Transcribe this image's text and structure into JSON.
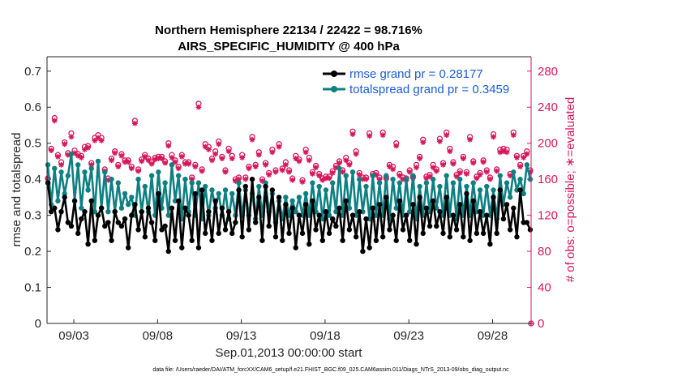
{
  "chart_data": {
    "type": "line",
    "title": "Northern Hemisphere 22134 / 22422 = 98.716%",
    "subtitle": "AIRS_SPECIFIC_HUMIDITY @ 400 hPa",
    "xlabel": "Sep.01,2013 00:00:00 start",
    "ylabel": "rmse and totalspread",
    "y2label": "# of obs: o=possible; ∗=evaluated",
    "footer": "data file: /Users/raeder/DAI/ATM_forcXX/CAM6_setup/f.e21.FHIST_BGC.f09_025.CAM6assim.011/Diags_NTrS_2013-09/obs_diag_output.nc",
    "xlim": [
      1.4,
      30.3
    ],
    "ylim": [
      0,
      0.74
    ],
    "y2lim": [
      0,
      296
    ],
    "x_ticks": [
      {
        "x": 3,
        "label": "09/03"
      },
      {
        "x": 8,
        "label": "09/08"
      },
      {
        "x": 13,
        "label": "09/13"
      },
      {
        "x": 18,
        "label": "09/18"
      },
      {
        "x": 23,
        "label": "09/23"
      },
      {
        "x": 28,
        "label": "09/28"
      }
    ],
    "y_ticks": [
      "0",
      "0.1",
      "0.2",
      "0.3",
      "0.4",
      "0.5",
      "0.6",
      "0.7"
    ],
    "y2_ticks": [
      "0",
      "40",
      "80",
      "120",
      "160",
      "200",
      "240",
      "280"
    ],
    "grid": false,
    "legend_position": "top-right",
    "colors": {
      "rmse": "#000000",
      "totalspread": "#0e7f82",
      "obs": "#d6175a",
      "legend_text": "#1a5cd6"
    },
    "series": [
      {
        "name": "rmse grand pr = 0.28177",
        "values": [
          0.26,
          0.39,
          0.31,
          0.32,
          0.26,
          0.31,
          0.35,
          0.28,
          0.27,
          0.34,
          0.25,
          0.29,
          0.31,
          0.22,
          0.34,
          0.23,
          0.3,
          0.32,
          0.27,
          0.28,
          0.23,
          0.31,
          0.28,
          0.27,
          0.29,
          0.21,
          0.3,
          0.33,
          0.26,
          0.31,
          0.24,
          0.32,
          0.28,
          0.23,
          0.36,
          0.26,
          0.27,
          0.2,
          0.32,
          0.23,
          0.34,
          0.21,
          0.32,
          0.3,
          0.23,
          0.36,
          0.21,
          0.37,
          0.25,
          0.31,
          0.23,
          0.34,
          0.25,
          0.32,
          0.26,
          0.31,
          0.25,
          0.28,
          0.37,
          0.24,
          0.38,
          0.26,
          0.4,
          0.28,
          0.35,
          0.23,
          0.38,
          0.27,
          0.37,
          0.24,
          0.35,
          0.23,
          0.33,
          0.25,
          0.32,
          0.21,
          0.3,
          0.25,
          0.33,
          0.22,
          0.34,
          0.26,
          0.3,
          0.23,
          0.31,
          0.25,
          0.29,
          0.27,
          0.32,
          0.23,
          0.34,
          0.26,
          0.3,
          0.24,
          0.31,
          0.2,
          0.29,
          0.21,
          0.32,
          0.23,
          0.33,
          0.24,
          0.35,
          0.26,
          0.3,
          0.23,
          0.34,
          0.26,
          0.3,
          0.23,
          0.33,
          0.22,
          0.35,
          0.25,
          0.32,
          0.27,
          0.34,
          0.27,
          0.31,
          0.25,
          0.35,
          0.24,
          0.3,
          0.26,
          0.33,
          0.24,
          0.36,
          0.23,
          0.34,
          0.25,
          0.31,
          0.25,
          0.3,
          0.22,
          0.35,
          0.25,
          0.37,
          0.29,
          0.33,
          0.26,
          0.32,
          0.24,
          0.37,
          0.28,
          0.28,
          0.26,
          0.27,
          0.24,
          0.28,
          0.3,
          0.29
        ]
      },
      {
        "name": "totalspread grand pr = 0.3459",
        "values": [
          0.37,
          0.44,
          0.33,
          0.43,
          0.34,
          0.42,
          0.36,
          0.41,
          0.47,
          0.34,
          0.44,
          0.32,
          0.42,
          0.37,
          0.43,
          0.31,
          0.45,
          0.32,
          0.42,
          0.31,
          0.4,
          0.31,
          0.39,
          0.32,
          0.36,
          0.33,
          0.35,
          0.3,
          0.4,
          0.31,
          0.38,
          0.31,
          0.41,
          0.3,
          0.42,
          0.32,
          0.39,
          0.3,
          0.44,
          0.34,
          0.41,
          0.29,
          0.4,
          0.31,
          0.39,
          0.3,
          0.39,
          0.29,
          0.38,
          0.3,
          0.37,
          0.32,
          0.36,
          0.3,
          0.37,
          0.29,
          0.36,
          0.3,
          0.39,
          0.3,
          0.37,
          0.3,
          0.36,
          0.29,
          0.38,
          0.3,
          0.39,
          0.31,
          0.36,
          0.28,
          0.34,
          0.29,
          0.35,
          0.3,
          0.34,
          0.31,
          0.35,
          0.3,
          0.36,
          0.3,
          0.39,
          0.31,
          0.38,
          0.29,
          0.37,
          0.3,
          0.39,
          0.31,
          0.43,
          0.3,
          0.41,
          0.32,
          0.42,
          0.3,
          0.4,
          0.31,
          0.38,
          0.29,
          0.41,
          0.3,
          0.39,
          0.3,
          0.41,
          0.29,
          0.4,
          0.32,
          0.39,
          0.3,
          0.4,
          0.31,
          0.41,
          0.29,
          0.38,
          0.3,
          0.39,
          0.31,
          0.4,
          0.32,
          0.38,
          0.3,
          0.41,
          0.3,
          0.39,
          0.29,
          0.4,
          0.3,
          0.38,
          0.3,
          0.39,
          0.31,
          0.37,
          0.3,
          0.38,
          0.3,
          0.37,
          0.29,
          0.41,
          0.33,
          0.39,
          0.35,
          0.42,
          0.37,
          0.4,
          0.36,
          0.44,
          0.4,
          0.41,
          0.38,
          0.43,
          0.38,
          0.4
        ]
      },
      {
        "name": "# of obs possible",
        "values": [
          201,
          161,
          194,
          228,
          187,
          179,
          201,
          189,
          211,
          192,
          188,
          186,
          196,
          197,
          178,
          206,
          209,
          206,
          171,
          161,
          183,
          191,
          176,
          188,
          181,
          181,
          174,
          225,
          171,
          182,
          187,
          183,
          179,
          184,
          185,
          185,
          180,
          200,
          187,
          181,
          174,
          187,
          179,
          179,
          162,
          176,
          244,
          171,
          199,
          196,
          183,
          191,
          202,
          185,
          170,
          194,
          186,
          160,
          162,
          187,
          162,
          174,
          207,
          176,
          190,
          160,
          178,
          167,
          193,
          170,
          199,
          172,
          179,
          170,
          161,
          186,
          182,
          159,
          193,
          184,
          168,
          175,
          166,
          161,
          163,
          163,
          169,
          175,
          180,
          170,
          184,
          178,
          213,
          191,
          167,
          162,
          162,
          211,
          166,
          167,
          162,
          212,
          162,
          176,
          174,
          200,
          166,
          162,
          161,
          170,
          163,
          176,
          185,
          204,
          163,
          165,
          176,
          171,
          205,
          178,
          212,
          194,
          179,
          165,
          169,
          185,
          168,
          207,
          180,
          163,
          167,
          181,
          170,
          162,
          210,
          171,
          193,
          194,
          193,
          166,
          212,
          186,
          176,
          186,
          191,
          170,
          166,
          172,
          168,
          171,
          169
        ]
      },
      {
        "name": "# of obs evaluated",
        "values": [
          199,
          160,
          192,
          225,
          185,
          176,
          199,
          187,
          207,
          189,
          186,
          184,
          193,
          195,
          176,
          203,
          206,
          203,
          169,
          159,
          181,
          189,
          174,
          186,
          179,
          179,
          172,
          222,
          169,
          180,
          185,
          181,
          177,
          182,
          183,
          183,
          178,
          197,
          184,
          179,
          172,
          185,
          177,
          177,
          160,
          174,
          240,
          169,
          196,
          193,
          181,
          188,
          199,
          183,
          168,
          191,
          183,
          158,
          160,
          184,
          160,
          172,
          204,
          174,
          187,
          158,
          176,
          165,
          190,
          168,
          196,
          170,
          176,
          168,
          159,
          183,
          180,
          157,
          190,
          181,
          166,
          173,
          164,
          159,
          161,
          161,
          167,
          173,
          178,
          168,
          181,
          176,
          210,
          188,
          165,
          160,
          160,
          208,
          164,
          165,
          160,
          209,
          160,
          174,
          171,
          197,
          164,
          160,
          159,
          168,
          161,
          173,
          183,
          201,
          161,
          163,
          173,
          169,
          202,
          176,
          209,
          191,
          177,
          163,
          167,
          183,
          166,
          204,
          178,
          161,
          165,
          179,
          168,
          160,
          207,
          169,
          190,
          191,
          190,
          164,
          209,
          184,
          174,
          184,
          188,
          168,
          164,
          170,
          166,
          169,
          167
        ]
      }
    ]
  }
}
